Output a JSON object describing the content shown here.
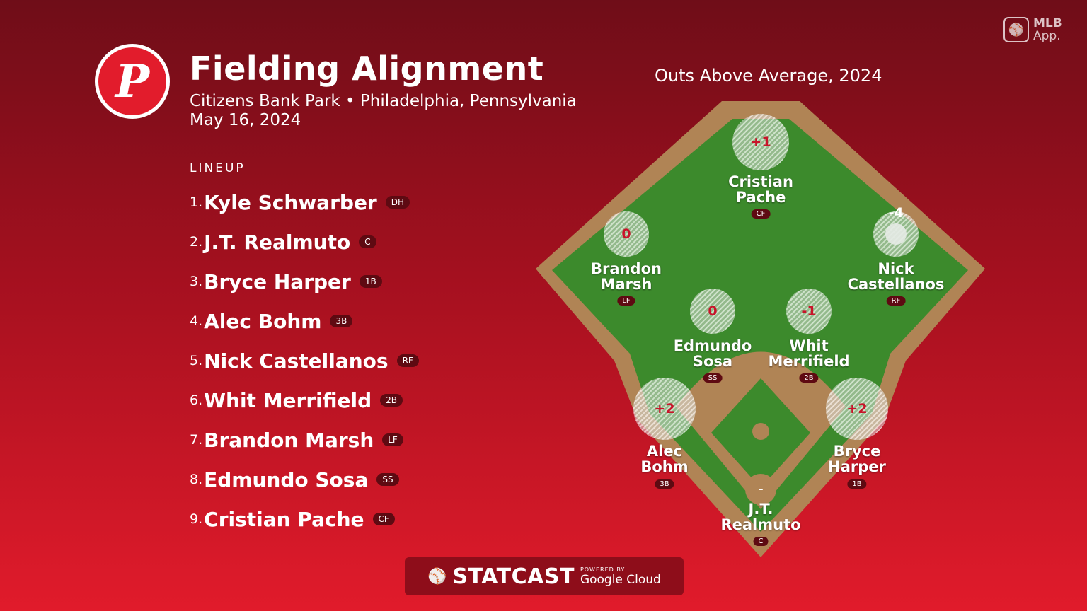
{
  "team_logo_letter": "P",
  "header": {
    "title": "Fielding Alignment",
    "subtitle": "Citizens Bank Park • Philadelphia, Pennsylvania",
    "date": "May 16, 2024"
  },
  "mlb_app": {
    "icon": "mlb-logo-icon",
    "line1": "MLB",
    "line2": "App."
  },
  "lineup": {
    "heading": "LINEUP",
    "players": [
      {
        "num": "1.",
        "name": "Kyle Schwarber",
        "pos": "DH"
      },
      {
        "num": "2.",
        "name": "J.T. Realmuto",
        "pos": "C"
      },
      {
        "num": "3.",
        "name": "Bryce Harper",
        "pos": "1B"
      },
      {
        "num": "4.",
        "name": "Alec Bohm",
        "pos": "3B"
      },
      {
        "num": "5.",
        "name": "Nick Castellanos",
        "pos": "RF"
      },
      {
        "num": "6.",
        "name": "Whit Merrifield",
        "pos": "2B"
      },
      {
        "num": "7.",
        "name": "Brandon Marsh",
        "pos": "LF"
      },
      {
        "num": "8.",
        "name": "Edmundo Sosa",
        "pos": "SS"
      },
      {
        "num": "9.",
        "name": "Cristian Pache",
        "pos": "CF"
      }
    ]
  },
  "chart": {
    "title": "Outs Above Average, 2024",
    "fielders": [
      {
        "pos": "CF",
        "line1": "Cristian",
        "line2": "Pache",
        "oaa": "+1"
      },
      {
        "pos": "LF",
        "line1": "Brandon",
        "line2": "Marsh",
        "oaa": "0"
      },
      {
        "pos": "RF",
        "line1": "Nick",
        "line2": "Castellanos",
        "oaa": "-4"
      },
      {
        "pos": "SS",
        "line1": "Edmundo",
        "line2": "Sosa",
        "oaa": "0"
      },
      {
        "pos": "2B",
        "line1": "Whit",
        "line2": "Merrifield",
        "oaa": "-1"
      },
      {
        "pos": "3B",
        "line1": "Alec",
        "line2": "Bohm",
        "oaa": "+2"
      },
      {
        "pos": "1B",
        "line1": "Bryce",
        "line2": "Harper",
        "oaa": "+2"
      },
      {
        "pos": "C",
        "line1": "J.T.",
        "line2": "Realmuto",
        "oaa": "–"
      }
    ]
  },
  "footer": {
    "brand": "STATCAST",
    "powered_by": "POWERED BY",
    "partner": "Google Cloud"
  },
  "colors": {
    "grass": "#3c8a2c",
    "dirt": "#b08455",
    "accent": "#c8142a"
  }
}
